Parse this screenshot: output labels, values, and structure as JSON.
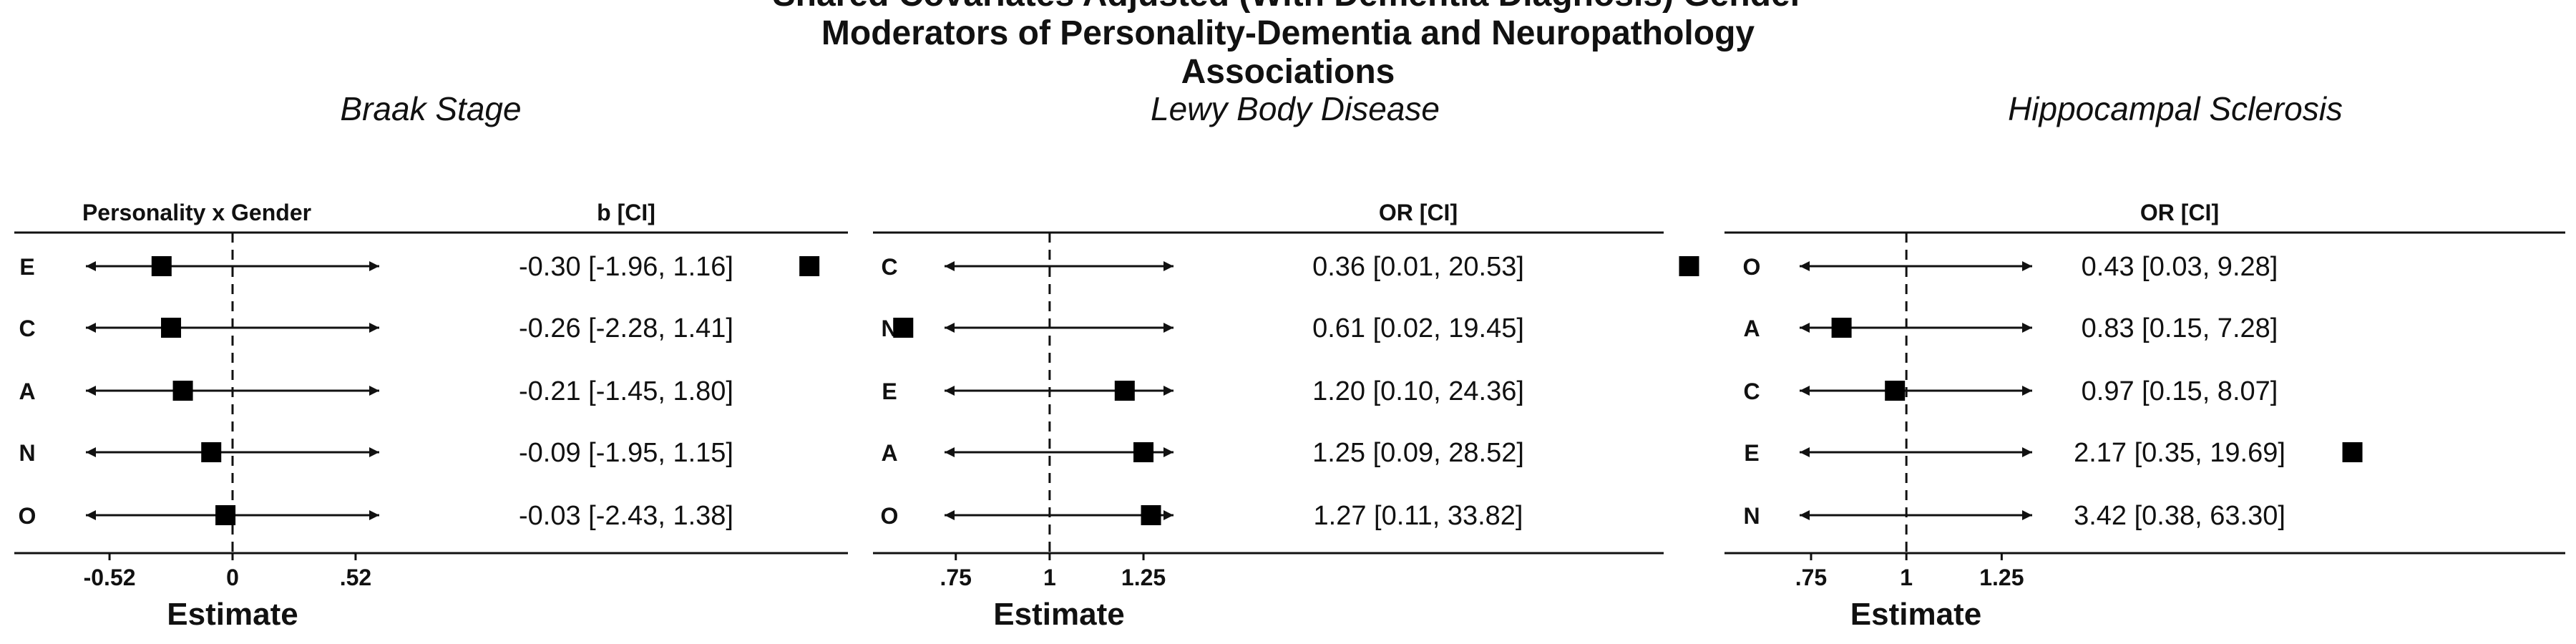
{
  "title_lines": [
    "Shared Covariates Adjusted (With Dementia Diagnosis) Gender",
    "Moderators of Personality-Dementia and Neuropathology",
    "Associations"
  ],
  "chart_data": [
    {
      "type": "forest",
      "subtitle": "Braak Stage",
      "row_header": "Personality x Gender",
      "ci_header": "b [CI]",
      "xlabel": "Estimate",
      "xlim": [
        -0.62,
        0.62
      ],
      "ref_line": 0,
      "xticks": [
        -0.52,
        0,
        0.52
      ],
      "xtick_labels": [
        "-0.52",
        "0",
        ".52"
      ],
      "rows": [
        {
          "label": "E",
          "estimate": -0.3,
          "lower": -1.96,
          "upper": 1.16,
          "ci_label": "-0.30 [-1.96, 1.16]"
        },
        {
          "label": "C",
          "estimate": -0.26,
          "lower": -2.28,
          "upper": 1.41,
          "ci_label": "-0.26 [-2.28, 1.41]"
        },
        {
          "label": "A",
          "estimate": -0.21,
          "lower": -1.45,
          "upper": 1.8,
          "ci_label": "-0.21 [-1.45, 1.80]"
        },
        {
          "label": "N",
          "estimate": -0.09,
          "lower": -1.95,
          "upper": 1.15,
          "ci_label": "-0.09 [-1.95, 1.15]"
        },
        {
          "label": "O",
          "estimate": -0.03,
          "lower": -2.43,
          "upper": 1.38,
          "ci_label": "-0.03 [-2.43, 1.38]"
        }
      ]
    },
    {
      "type": "forest",
      "subtitle": "Lewy Body Disease",
      "row_header": "",
      "ci_header": "OR [CI]",
      "xlabel": "Estimate",
      "xlim": [
        0.72,
        1.33
      ],
      "ref_line": 1,
      "xticks": [
        0.75,
        1,
        1.25
      ],
      "xtick_labels": [
        ".75",
        "1",
        "1.25"
      ],
      "rows": [
        {
          "label": "C",
          "estimate": 0.36,
          "lower": 0.01,
          "upper": 20.53,
          "ci_label": "0.36 [0.01, 20.53]"
        },
        {
          "label": "N",
          "estimate": 0.61,
          "lower": 0.02,
          "upper": 19.45,
          "ci_label": "0.61 [0.02, 19.45]"
        },
        {
          "label": "E",
          "estimate": 1.2,
          "lower": 0.1,
          "upper": 24.36,
          "ci_label": "1.20 [0.10, 24.36]"
        },
        {
          "label": "A",
          "estimate": 1.25,
          "lower": 0.09,
          "upper": 28.52,
          "ci_label": "1.25 [0.09, 28.52]"
        },
        {
          "label": "O",
          "estimate": 1.27,
          "lower": 0.11,
          "upper": 33.82,
          "ci_label": "1.27 [0.11, 33.82]"
        }
      ]
    },
    {
      "type": "forest",
      "subtitle": "Hippocampal Sclerosis",
      "row_header": "",
      "ci_header": "OR [CI]",
      "xlabel": "Estimate",
      "xlim": [
        0.72,
        1.33
      ],
      "ref_line": 1,
      "xticks": [
        0.75,
        1,
        1.25
      ],
      "xtick_labels": [
        ".75",
        "1",
        "1.25"
      ],
      "rows": [
        {
          "label": "O",
          "estimate": 0.43,
          "lower": 0.03,
          "upper": 9.28,
          "ci_label": "0.43 [0.03, 9.28]"
        },
        {
          "label": "A",
          "estimate": 0.83,
          "lower": 0.15,
          "upper": 7.28,
          "ci_label": "0.83 [0.15, 7.28]"
        },
        {
          "label": "C",
          "estimate": 0.97,
          "lower": 0.15,
          "upper": 8.07,
          "ci_label": "0.97 [0.15, 8.07]"
        },
        {
          "label": "E",
          "estimate": 2.17,
          "lower": 0.35,
          "upper": 19.69,
          "ci_label": "2.17 [0.35, 19.69]"
        },
        {
          "label": "N",
          "estimate": 3.42,
          "lower": 0.38,
          "upper": 63.3,
          "ci_label": "3.42 [0.38, 63.30]"
        }
      ]
    }
  ]
}
